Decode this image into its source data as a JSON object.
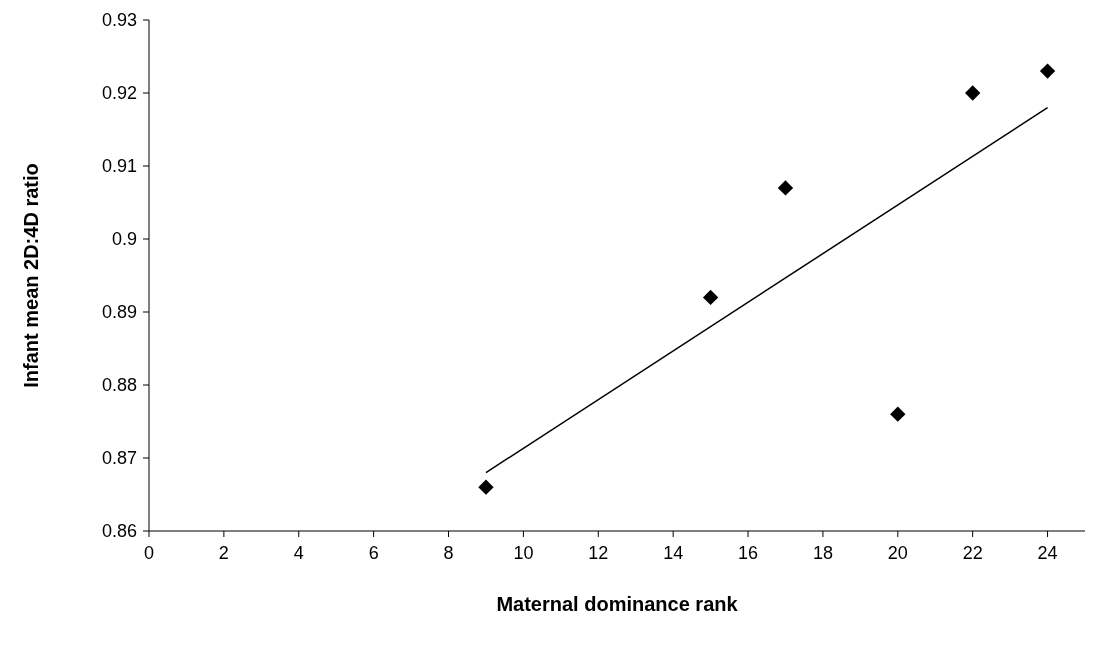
{
  "chart_data": {
    "type": "scatter",
    "xlabel": "Maternal dominance rank",
    "ylabel": "Infant mean 2D:4D ratio",
    "xlim": [
      0,
      25
    ],
    "xticks": [
      0,
      2,
      4,
      6,
      8,
      10,
      12,
      14,
      16,
      18,
      20,
      22,
      24
    ],
    "ylim": [
      0.86,
      0.93
    ],
    "yticks": [
      0.86,
      0.87,
      0.88,
      0.89,
      0.9,
      0.91,
      0.92,
      0.93
    ],
    "grid": false,
    "marker": "diamond",
    "series": [
      {
        "color": "#000000",
        "x": [
          9,
          15,
          17,
          20,
          22,
          24
        ],
        "values": [
          0.866,
          0.892,
          0.907,
          0.876,
          0.92,
          0.923
        ]
      },
      {
        "type": "line",
        "color": "#000000",
        "marker": "none",
        "line_style": "solid",
        "x": [
          9,
          24
        ],
        "values": [
          0.868,
          0.918
        ]
      }
    ]
  }
}
